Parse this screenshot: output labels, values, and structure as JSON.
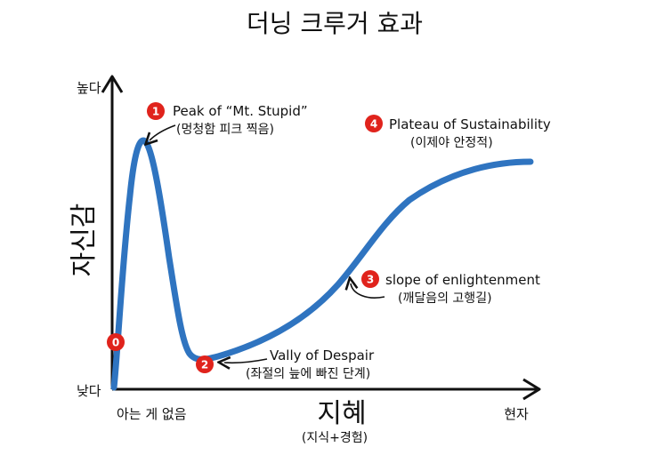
{
  "title": "더닝 크루거 효과",
  "axes": {
    "y": {
      "label": "자신감",
      "high": "높다",
      "low": "낮다"
    },
    "x": {
      "label": "지혜",
      "sublabel": "(지식+경험)",
      "start": "아는 게 없음",
      "end": "현자"
    }
  },
  "annotations": [
    {
      "badge": "0"
    },
    {
      "badge": "1",
      "label": "Peak of “Mt. Stupid”",
      "sub": "(멍청함 피크 찍음)"
    },
    {
      "badge": "2",
      "label": "Vally of Despair",
      "sub": "(좌절의 늪에 빠진 단계)"
    },
    {
      "badge": "3",
      "label": "slope of enlightenment",
      "sub": "(깨달음의 고행길)"
    },
    {
      "badge": "4",
      "label": "Plateau of Sustainability",
      "sub": "(이제야 안정적)"
    }
  ],
  "colors": {
    "curve": "#2f74c0",
    "badge": "#e0231c",
    "axis": "#111111"
  }
}
